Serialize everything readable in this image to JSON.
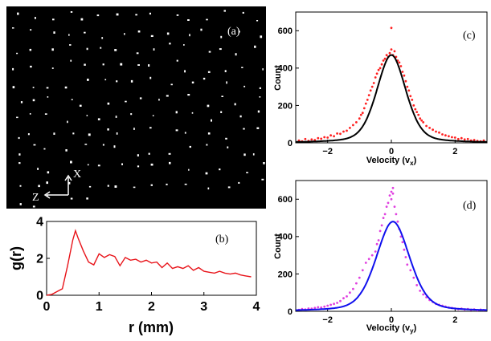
{
  "colors": {
    "background": "#000000",
    "particles": "#ffffff",
    "gr_line": "#e8141a",
    "vx_points": "#ff2020",
    "vx_fit": "#000000",
    "vy_points": "#e040e0",
    "vy_fit": "#1010ee"
  },
  "panel_a": {
    "label": "(a)",
    "axis_x_label": "X",
    "axis_z_label": "Z",
    "particle_count_approx": 170
  },
  "chart_data": [
    {
      "id": "b",
      "type": "line",
      "panel_label": "(b)",
      "xlabel": "r (mm)",
      "ylabel": "g(r)",
      "xlim": [
        0,
        4
      ],
      "ylim": [
        0,
        4
      ],
      "xticks": [
        0,
        1,
        2,
        3,
        4
      ],
      "yticks": [
        0,
        2,
        4
      ],
      "grid": false,
      "series": [
        {
          "color": "#e8141a",
          "x": [
            0.0,
            0.1,
            0.2,
            0.3,
            0.4,
            0.5,
            0.55,
            0.6,
            0.7,
            0.8,
            0.9,
            1.0,
            1.1,
            1.2,
            1.3,
            1.4,
            1.5,
            1.6,
            1.7,
            1.8,
            1.9,
            2.0,
            2.1,
            2.2,
            2.3,
            2.4,
            2.5,
            2.6,
            2.7,
            2.8,
            2.9,
            3.0,
            3.1,
            3.2,
            3.3,
            3.4,
            3.5,
            3.6,
            3.7,
            3.8,
            3.9
          ],
          "y": [
            0.0,
            0.05,
            0.2,
            0.35,
            1.6,
            3.0,
            3.5,
            3.1,
            2.4,
            1.8,
            1.65,
            2.25,
            2.05,
            2.2,
            2.1,
            1.6,
            2.05,
            1.9,
            1.95,
            1.8,
            1.9,
            1.75,
            1.8,
            1.5,
            1.75,
            1.45,
            1.55,
            1.45,
            1.6,
            1.35,
            1.5,
            1.3,
            1.25,
            1.2,
            1.3,
            1.2,
            1.15,
            1.2,
            1.1,
            1.05,
            1.0
          ]
        }
      ]
    },
    {
      "id": "c",
      "type": "scatter",
      "panel_label": "(c)",
      "xlabel": "Velocity (v",
      "xlabel_sub": "x",
      "xlabel_end": ")",
      "ylabel": "Count",
      "xlim": [
        -3,
        3
      ],
      "ylim": [
        0,
        700
      ],
      "xticks": [
        -2,
        0,
        2
      ],
      "yticks": [
        0,
        200,
        400,
        600
      ],
      "grid": false,
      "fit": {
        "amplitude": 470,
        "center": 0.0,
        "width": 0.52
      },
      "points": {
        "x": [
          -2.9,
          -2.8,
          -2.7,
          -2.6,
          -2.5,
          -2.4,
          -2.3,
          -2.2,
          -2.1,
          -2.0,
          -1.9,
          -1.8,
          -1.7,
          -1.6,
          -1.5,
          -1.4,
          -1.3,
          -1.2,
          -1.1,
          -1.0,
          -0.95,
          -0.9,
          -0.85,
          -0.8,
          -0.75,
          -0.7,
          -0.65,
          -0.6,
          -0.55,
          -0.5,
          -0.45,
          -0.4,
          -0.35,
          -0.3,
          -0.25,
          -0.2,
          -0.15,
          -0.1,
          -0.05,
          0.0,
          0.0,
          0.05,
          0.1,
          0.15,
          0.2,
          0.25,
          0.3,
          0.35,
          0.4,
          0.45,
          0.5,
          0.55,
          0.6,
          0.65,
          0.7,
          0.75,
          0.8,
          0.85,
          0.9,
          0.95,
          1.0,
          1.1,
          1.2,
          1.3,
          1.4,
          1.5,
          1.6,
          1.7,
          1.8,
          1.9,
          2.0,
          2.1,
          2.2,
          2.3,
          2.4,
          2.5,
          2.6,
          2.7,
          2.8,
          2.9
        ],
        "y": [
          12,
          8,
          20,
          10,
          18,
          15,
          25,
          22,
          30,
          28,
          40,
          35,
          50,
          48,
          60,
          65,
          80,
          95,
          110,
          130,
          150,
          160,
          185,
          210,
          230,
          255,
          280,
          300,
          320,
          350,
          370,
          390,
          400,
          420,
          440,
          450,
          470,
          460,
          480,
          615,
          500,
          470,
          490,
          460,
          440,
          430,
          410,
          380,
          360,
          330,
          300,
          280,
          250,
          230,
          200,
          180,
          165,
          150,
          130,
          120,
          110,
          90,
          80,
          70,
          60,
          55,
          45,
          40,
          35,
          30,
          28,
          20,
          25,
          18,
          20,
          12,
          15,
          10,
          8,
          12
        ]
      }
    },
    {
      "id": "d",
      "type": "scatter",
      "panel_label": "(d)",
      "xlabel": "Velocity (v",
      "xlabel_sub": "y",
      "xlabel_end": ")",
      "ylabel": "Count",
      "xlim": [
        -3,
        3
      ],
      "ylim": [
        0,
        700
      ],
      "xticks": [
        -2,
        0,
        2
      ],
      "yticks": [
        0,
        200,
        400,
        600
      ],
      "grid": false,
      "fit": {
        "amplitude": 480,
        "center": 0.05,
        "width": 0.6
      },
      "points": {
        "x": [
          -2.9,
          -2.8,
          -2.7,
          -2.6,
          -2.5,
          -2.4,
          -2.3,
          -2.2,
          -2.1,
          -2.0,
          -1.9,
          -1.8,
          -1.7,
          -1.6,
          -1.5,
          -1.4,
          -1.3,
          -1.2,
          -1.1,
          -1.0,
          -0.9,
          -0.8,
          -0.7,
          -0.6,
          -0.5,
          -0.45,
          -0.4,
          -0.35,
          -0.3,
          -0.25,
          -0.2,
          -0.15,
          -0.1,
          -0.05,
          0.0,
          0.0,
          0.05,
          0.05,
          0.1,
          0.15,
          0.2,
          0.25,
          0.3,
          0.35,
          0.4,
          0.45,
          0.5,
          0.6,
          0.7,
          0.8,
          0.9,
          1.0,
          1.1,
          1.2,
          1.3,
          1.4,
          1.5,
          1.6,
          1.7,
          1.8,
          1.9,
          2.0,
          2.1,
          2.2,
          2.3,
          2.4,
          2.5,
          2.6,
          2.7,
          2.8,
          2.9
        ],
        "y": [
          8,
          12,
          10,
          15,
          14,
          18,
          22,
          20,
          25,
          30,
          35,
          40,
          45,
          55,
          70,
          80,
          100,
          120,
          150,
          180,
          220,
          260,
          280,
          300,
          320,
          360,
          380,
          430,
          460,
          500,
          520,
          560,
          580,
          620,
          640,
          600,
          660,
          630,
          560,
          520,
          480,
          440,
          400,
          370,
          330,
          290,
          250,
          220,
          180,
          140,
          110,
          90,
          75,
          60,
          50,
          40,
          35,
          30,
          25,
          20,
          18,
          15,
          12,
          14,
          10,
          12,
          8,
          10,
          6,
          9,
          7
        ]
      }
    }
  ]
}
